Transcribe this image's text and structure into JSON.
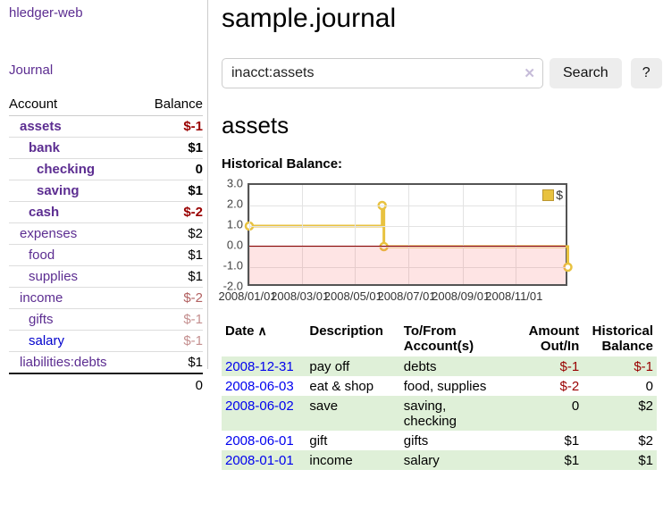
{
  "app": {
    "brand": "hledger-web"
  },
  "sidebar": {
    "nav_journal": "Journal",
    "header": {
      "account": "Account",
      "balance": "Balance"
    },
    "accounts": [
      {
        "name": "assets",
        "balance": "$-1"
      },
      {
        "name": "bank",
        "balance": "$1"
      },
      {
        "name": "checking",
        "balance": "0"
      },
      {
        "name": "saving",
        "balance": "$1"
      },
      {
        "name": "cash",
        "balance": "$-2"
      },
      {
        "name": "expenses",
        "balance": "$2"
      },
      {
        "name": "food",
        "balance": "$1"
      },
      {
        "name": "supplies",
        "balance": "$1"
      },
      {
        "name": "income",
        "balance": "$-2"
      },
      {
        "name": "gifts",
        "balance": "$-1"
      },
      {
        "name": "salary",
        "balance": "$-1"
      },
      {
        "name": "liabilities:debts",
        "balance": "$1"
      }
    ],
    "total": "0"
  },
  "header": {
    "title": "sample.journal"
  },
  "search": {
    "query": "inacct:assets",
    "clear_icon": "✕",
    "button_label": "Search",
    "help_label": "?"
  },
  "account_page": {
    "title": "assets",
    "chart_heading": "Historical Balance:"
  },
  "chart_data": {
    "type": "line",
    "step": true,
    "title": "Historical Balance",
    "series": [
      {
        "name": "$",
        "color": "#e8c240",
        "points": [
          [
            "2008-01-01",
            1
          ],
          [
            "2008-06-01",
            2
          ],
          [
            "2008-06-03",
            0
          ],
          [
            "2008-12-31",
            -1
          ]
        ]
      }
    ],
    "x_range": [
      "2008-01-01",
      "2009-01-01"
    ],
    "ylim": [
      -2,
      3
    ],
    "yticks": [
      "3.0",
      "2.0",
      "1.0",
      "0.0",
      "-1.0",
      "-2.0"
    ],
    "xticks": [
      "2008/01/01",
      "2008/03/01",
      "2008/05/01",
      "2008/07/01",
      "2008/09/01",
      "2008/11/01"
    ],
    "legend": {
      "label": "$",
      "position": "top-right"
    },
    "grid": true,
    "zero_line_color": "#8b0000",
    "negative_region": true
  },
  "register": {
    "columns": {
      "date": "Date",
      "sort_icon": "∧",
      "description": "Description",
      "accounts": "To/From\nAccount(s)",
      "amount": "Amount\nOut/In",
      "balance": "Historical\nBalance"
    },
    "rows": [
      {
        "date": "2008-12-31",
        "description": "pay off",
        "accounts": "debts",
        "amount": "$-1",
        "balance": "$-1"
      },
      {
        "date": "2008-06-03",
        "description": "eat & shop",
        "accounts": "food, supplies",
        "amount": "$-2",
        "balance": "0"
      },
      {
        "date": "2008-06-02",
        "description": "save",
        "accounts": "saving,\nchecking",
        "amount": "0",
        "balance": "$2"
      },
      {
        "date": "2008-06-01",
        "description": "gift",
        "accounts": "gifts",
        "amount": "$1",
        "balance": "$2"
      },
      {
        "date": "2008-01-01",
        "description": "income",
        "accounts": "salary",
        "amount": "$1",
        "balance": "$1"
      }
    ]
  }
}
